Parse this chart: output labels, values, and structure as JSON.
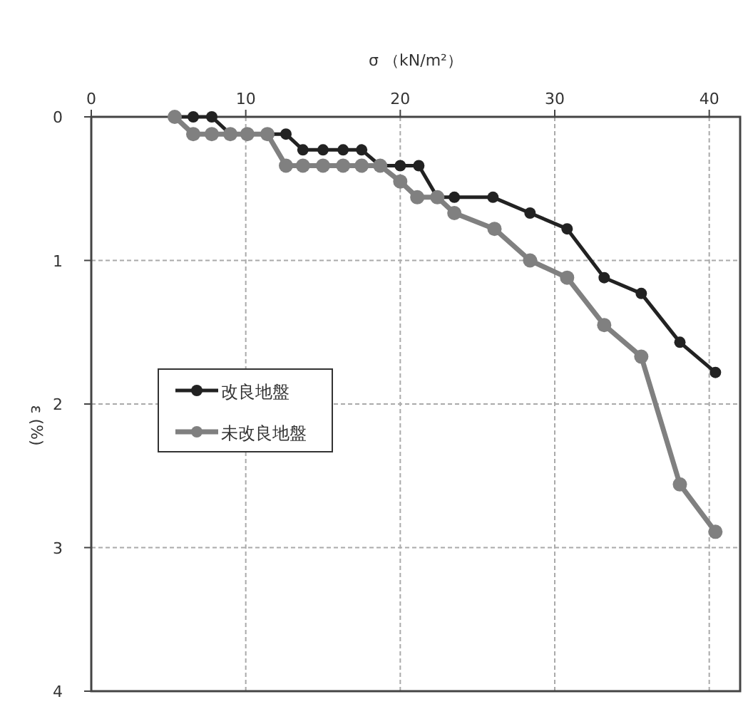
{
  "chart_data": {
    "type": "line",
    "xlabel": "σ （kN/m²）",
    "ylabel": "ε (%)",
    "xlim": [
      0,
      42
    ],
    "ylim": [
      4,
      0
    ],
    "xticks": [
      0,
      10,
      20,
      30,
      40
    ],
    "yticks": [
      0,
      1,
      2,
      3,
      4
    ],
    "grid": true,
    "legend": "left",
    "marker": "circle",
    "line_style": "solid",
    "series": [
      {
        "name": "改良地盤",
        "color": "#222222",
        "x": [
          5.4,
          6.6,
          7.8,
          9.0,
          10.1,
          11.4,
          12.6,
          13.7,
          15.0,
          16.3,
          17.5,
          18.7,
          20.0,
          21.2,
          22.4,
          23.5,
          26.0,
          28.4,
          30.8,
          33.2,
          35.6,
          38.1,
          40.4
        ],
        "values": [
          0,
          0,
          0,
          0.12,
          0.12,
          0.12,
          0.12,
          0.23,
          0.23,
          0.23,
          0.23,
          0.34,
          0.34,
          0.34,
          0.56,
          0.56,
          0.56,
          0.67,
          0.78,
          1.12,
          1.23,
          1.57,
          1.78
        ]
      },
      {
        "name": "未改良地盤",
        "color": "#808080",
        "x": [
          5.4,
          6.6,
          7.8,
          9.0,
          10.1,
          11.4,
          12.6,
          13.7,
          15.0,
          16.3,
          17.5,
          18.7,
          20.0,
          21.1,
          22.4,
          23.5,
          26.1,
          28.4,
          30.8,
          33.2,
          35.6,
          38.1,
          40.4
        ],
        "values": [
          0,
          0.12,
          0.12,
          0.12,
          0.12,
          0.12,
          0.34,
          0.34,
          0.34,
          0.34,
          0.34,
          0.34,
          0.45,
          0.56,
          0.56,
          0.67,
          0.78,
          1.0,
          1.12,
          1.45,
          1.67,
          2.56,
          2.89
        ]
      }
    ]
  }
}
